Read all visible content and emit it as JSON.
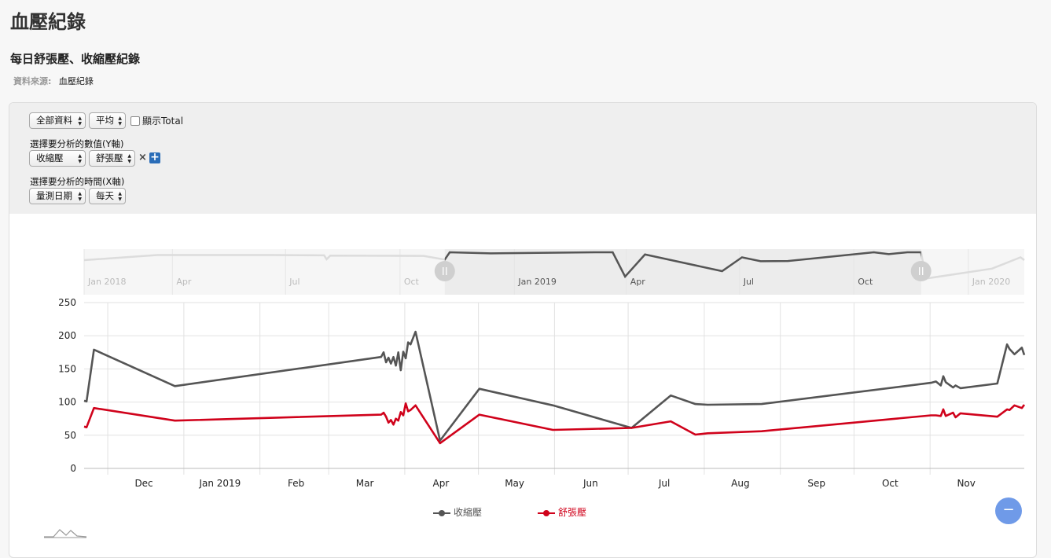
{
  "page": {
    "title": "血壓紀錄",
    "subtitle": "每日舒張壓、收縮壓紀錄",
    "source_label": "資料來源:",
    "source_value": "血壓紀錄"
  },
  "controls": {
    "data_scope": "全部資料",
    "aggregate": "平均",
    "show_total_label": "顯示Total",
    "y_axis_label": "選擇要分析的數值(Y軸)",
    "y_select_1": "收縮壓",
    "y_select_2": "舒張壓",
    "remove_icon": "×",
    "add_icon": "+",
    "x_axis_label": "選擇要分析的時間(X軸)",
    "x_select_field": "量測日期",
    "x_select_interval": "每天"
  },
  "collapse_button": "−",
  "chart_data": {
    "type": "line",
    "x_unit": "date",
    "ylim": [
      0,
      250
    ],
    "yticks": [
      0,
      50,
      100,
      150,
      200,
      250
    ],
    "xlim": [
      "2018-11-06",
      "2019-11-24"
    ],
    "x_tick_labels": [
      {
        "date": "2018-12-01",
        "label": "Dec"
      },
      {
        "date": "2019-01-01",
        "label": "Jan 2019"
      },
      {
        "date": "2019-02-01",
        "label": "Feb"
      },
      {
        "date": "2019-03-01",
        "label": "Mar"
      },
      {
        "date": "2019-04-01",
        "label": "Apr"
      },
      {
        "date": "2019-05-01",
        "label": "May"
      },
      {
        "date": "2019-06-01",
        "label": "Jun"
      },
      {
        "date": "2019-07-01",
        "label": "Jul"
      },
      {
        "date": "2019-08-01",
        "label": "Aug"
      },
      {
        "date": "2019-09-01",
        "label": "Sep"
      },
      {
        "date": "2019-10-01",
        "label": "Oct"
      },
      {
        "date": "2019-11-01",
        "label": "Nov"
      }
    ],
    "grid": true,
    "legend_position": "bottom-center",
    "series": [
      {
        "name": "收縮壓",
        "color": "#555555",
        "points": [
          [
            "2018-11-06",
            102
          ],
          [
            "2018-11-07",
            101
          ],
          [
            "2018-11-10",
            179
          ],
          [
            "2018-12-13",
            124
          ],
          [
            "2019-03-07",
            168
          ],
          [
            "2019-03-08",
            175
          ],
          [
            "2019-03-09",
            160
          ],
          [
            "2019-03-10",
            167
          ],
          [
            "2019-03-11",
            158
          ],
          [
            "2019-03-12",
            168
          ],
          [
            "2019-03-13",
            155
          ],
          [
            "2019-03-14",
            175
          ],
          [
            "2019-03-15",
            148
          ],
          [
            "2019-03-16",
            176
          ],
          [
            "2019-03-17",
            166
          ],
          [
            "2019-03-18",
            190
          ],
          [
            "2019-03-19",
            187
          ],
          [
            "2019-03-21",
            206
          ],
          [
            "2019-03-31",
            42
          ],
          [
            "2019-04-16",
            120
          ],
          [
            "2019-05-16",
            95
          ],
          [
            "2019-06-17",
            61
          ],
          [
            "2019-07-03",
            110
          ],
          [
            "2019-07-13",
            97
          ],
          [
            "2019-07-18",
            96
          ],
          [
            "2019-08-09",
            97
          ],
          [
            "2019-10-17",
            129
          ],
          [
            "2019-10-19",
            131
          ],
          [
            "2019-10-21",
            125
          ],
          [
            "2019-10-22",
            139
          ],
          [
            "2019-10-23",
            130
          ],
          [
            "2019-10-26",
            122
          ],
          [
            "2019-10-27",
            125
          ],
          [
            "2019-10-29",
            121
          ],
          [
            "2019-11-13",
            128
          ],
          [
            "2019-11-17",
            187
          ],
          [
            "2019-11-18",
            180
          ],
          [
            "2019-11-20",
            172
          ],
          [
            "2019-11-23",
            182
          ],
          [
            "2019-11-24",
            171
          ]
        ]
      },
      {
        "name": "舒張壓",
        "color": "#d0021b",
        "points": [
          [
            "2018-11-06",
            63
          ],
          [
            "2018-11-07",
            62
          ],
          [
            "2018-11-10",
            91
          ],
          [
            "2018-12-13",
            72
          ],
          [
            "2019-03-07",
            81
          ],
          [
            "2019-03-08",
            84
          ],
          [
            "2019-03-09",
            78
          ],
          [
            "2019-03-10",
            69
          ],
          [
            "2019-03-11",
            73
          ],
          [
            "2019-03-12",
            66
          ],
          [
            "2019-03-13",
            75
          ],
          [
            "2019-03-14",
            72
          ],
          [
            "2019-03-15",
            85
          ],
          [
            "2019-03-16",
            80
          ],
          [
            "2019-03-17",
            98
          ],
          [
            "2019-03-18",
            86
          ],
          [
            "2019-03-19",
            88
          ],
          [
            "2019-03-21",
            95
          ],
          [
            "2019-03-31",
            38
          ],
          [
            "2019-04-16",
            81
          ],
          [
            "2019-05-16",
            58
          ],
          [
            "2019-06-17",
            61
          ],
          [
            "2019-07-03",
            71
          ],
          [
            "2019-07-13",
            51
          ],
          [
            "2019-07-18",
            53
          ],
          [
            "2019-08-09",
            56
          ],
          [
            "2019-10-17",
            80
          ],
          [
            "2019-10-19",
            80
          ],
          [
            "2019-10-21",
            79
          ],
          [
            "2019-10-22",
            89
          ],
          [
            "2019-10-23",
            79
          ],
          [
            "2019-10-26",
            84
          ],
          [
            "2019-10-27",
            77
          ],
          [
            "2019-10-29",
            83
          ],
          [
            "2019-11-13",
            78
          ],
          [
            "2019-11-17",
            89
          ],
          [
            "2019-11-18",
            88
          ],
          [
            "2019-11-20",
            95
          ],
          [
            "2019-11-23",
            91
          ],
          [
            "2019-11-24",
            96
          ]
        ]
      }
    ],
    "navigator": {
      "range": [
        "2018-01-20",
        "2020-02-15"
      ],
      "selection": [
        "2018-11-06",
        "2019-11-24"
      ],
      "labels": [
        {
          "date": "2018-01-20",
          "label": "Jan 2018"
        },
        {
          "date": "2018-04-01",
          "label": "Apr"
        },
        {
          "date": "2018-07-01",
          "label": "Jul"
        },
        {
          "date": "2018-10-01",
          "label": "Oct"
        },
        {
          "date": "2019-01-01",
          "label": "Jan 2019"
        },
        {
          "date": "2019-04-01",
          "label": "Apr"
        },
        {
          "date": "2019-07-01",
          "label": "Jul"
        },
        {
          "date": "2019-10-01",
          "label": "Oct"
        },
        {
          "date": "2020-01-01",
          "label": "Jan 2020"
        }
      ],
      "points": [
        [
          "2018-01-20",
          100
        ],
        [
          "2018-03-20",
          118
        ],
        [
          "2018-06-20",
          118
        ],
        [
          "2018-08-01",
          117
        ],
        [
          "2018-08-03",
          103
        ],
        [
          "2018-08-06",
          116
        ],
        [
          "2018-10-20",
          115
        ],
        [
          "2018-11-06",
          102
        ],
        [
          "2018-11-10",
          179
        ],
        [
          "2018-12-13",
          124
        ],
        [
          "2019-03-07",
          168
        ],
        [
          "2019-03-21",
          206
        ],
        [
          "2019-03-31",
          42
        ],
        [
          "2019-04-16",
          120
        ],
        [
          "2019-06-17",
          61
        ],
        [
          "2019-07-03",
          110
        ],
        [
          "2019-07-18",
          96
        ],
        [
          "2019-08-09",
          97
        ],
        [
          "2019-10-17",
          129
        ],
        [
          "2019-10-29",
          121
        ],
        [
          "2019-11-13",
          128
        ],
        [
          "2019-11-17",
          187
        ],
        [
          "2019-11-24",
          171
        ],
        [
          "2019-11-28",
          35
        ],
        [
          "2020-01-20",
          70
        ],
        [
          "2020-02-12",
          110
        ],
        [
          "2020-02-15",
          100
        ]
      ]
    }
  }
}
